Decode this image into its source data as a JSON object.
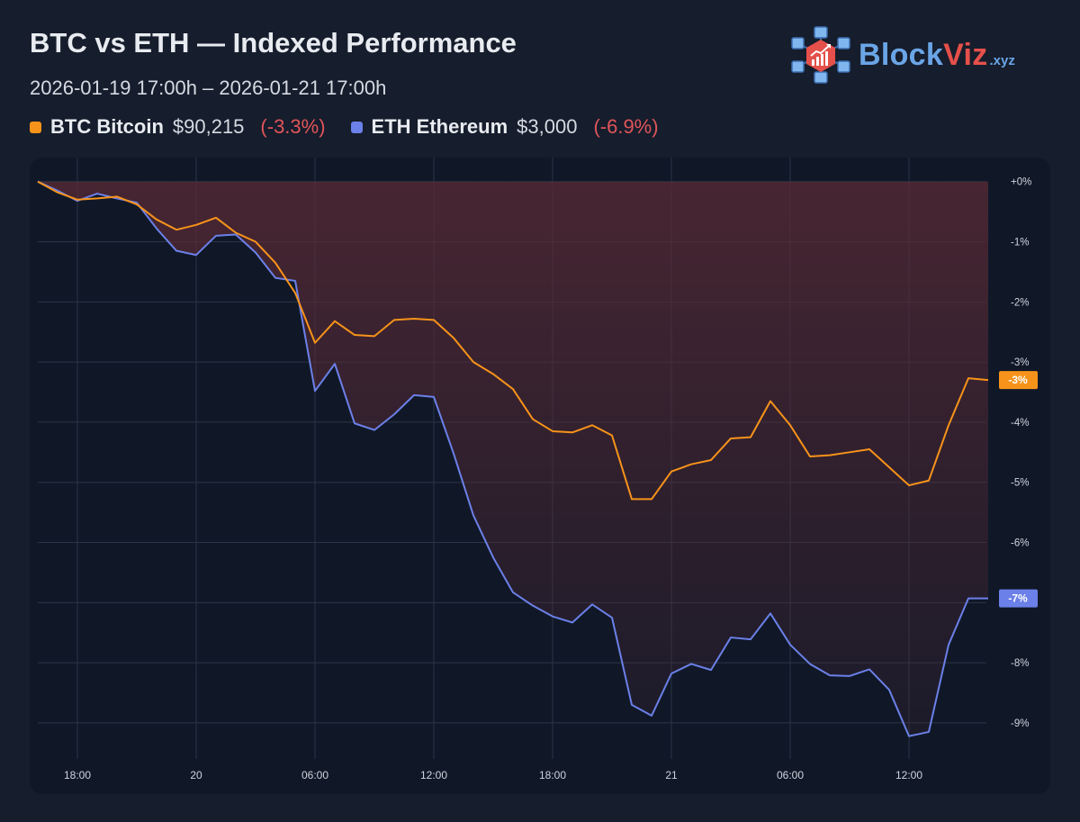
{
  "title": "BTC vs ETH — Indexed Performance",
  "subtitle": "2026-01-19 17:00h – 2026-01-21 17:00h",
  "legend": [
    {
      "name": "BTC Bitcoin",
      "price": "$90,215",
      "change": "(-3.3%)",
      "color": "#f7931a"
    },
    {
      "name": "ETH Ethereum",
      "price": "$3,000",
      "change": "(-6.9%)",
      "color": "#6b80e8"
    }
  ],
  "logo": {
    "part1": "Block",
    "part2": "Viz",
    "suffix": ".xyz",
    "icon": "blockchain-chart-icon"
  },
  "colors": {
    "btc": "#f7931a",
    "eth": "#6b80e8",
    "negative": "#e0555a",
    "fill": "#5a2a35"
  },
  "chart_data": {
    "type": "line",
    "x_labels": [
      "18:00",
      "20",
      "06:00",
      "12:00",
      "18:00",
      "21",
      "06:00",
      "12:00"
    ],
    "y_labels": [
      "+0%",
      "-1%",
      "-2%",
      "-3%",
      "-4%",
      "-5%",
      "-6%",
      "-7%",
      "-8%",
      "-9%"
    ],
    "ylim": [
      -9.6,
      0.4
    ],
    "y_ticks": [
      0,
      -1,
      -2,
      -3,
      -4,
      -5,
      -6,
      -7,
      -8,
      -9
    ],
    "grid": true,
    "series": [
      {
        "name": "BTC",
        "end_label": "-3%",
        "values": [
          0,
          -0.18,
          -0.3,
          -0.28,
          -0.25,
          -0.38,
          -0.63,
          -0.8,
          -0.72,
          -0.6,
          -0.85,
          -1.0,
          -1.35,
          -1.85,
          -2.68,
          -2.32,
          -2.55,
          -2.57,
          -2.3,
          -2.28,
          -2.3,
          -2.6,
          -3.0,
          -3.2,
          -3.45,
          -3.95,
          -4.15,
          -4.17,
          -4.05,
          -4.22,
          -5.28,
          -5.28,
          -4.82,
          -4.7,
          -4.63,
          -4.27,
          -4.25,
          -3.65,
          -4.05,
          -4.57,
          -4.55,
          -4.5,
          -4.45,
          -4.75,
          -5.05,
          -4.97,
          -4.05,
          -3.27,
          -3.3
        ]
      },
      {
        "name": "ETH",
        "end_label": "-7%",
        "values": [
          0,
          -0.15,
          -0.32,
          -0.2,
          -0.28,
          -0.35,
          -0.78,
          -1.15,
          -1.22,
          -0.9,
          -0.88,
          -1.18,
          -1.6,
          -1.65,
          -3.48,
          -3.03,
          -4.02,
          -4.13,
          -3.87,
          -3.55,
          -3.58,
          -4.52,
          -5.55,
          -6.25,
          -6.83,
          -7.05,
          -7.23,
          -7.33,
          -7.03,
          -7.25,
          -8.7,
          -8.88,
          -8.18,
          -8.02,
          -8.12,
          -7.58,
          -7.61,
          -7.18,
          -7.7,
          -8.02,
          -8.21,
          -8.22,
          -8.11,
          -8.45,
          -9.22,
          -9.15,
          -7.7,
          -6.93,
          -6.93
        ]
      }
    ]
  }
}
